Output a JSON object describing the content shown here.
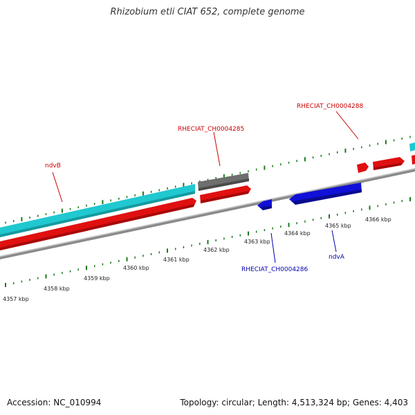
{
  "title": "Rhizobium etli CIAT 652, complete genome",
  "footer": {
    "accession": "Accession: NC_010994",
    "summary": "Topology: circular; Length: 4,513,324 bp; Genes: 4,403"
  },
  "colors": {
    "gene_forward": "#e01010",
    "gene_reverse": "#1010d8",
    "cds_cyan": "#20c8d0",
    "pseudo_gray": "#6e6e6e",
    "backbone": "#8a8a8a",
    "tick": "#1a7a1a",
    "label_forward": "#cc0000",
    "label_reverse": "#0000aa"
  },
  "kbp_labels": [
    "4357 kbp",
    "4358 kbp",
    "4359 kbp",
    "4360 kbp",
    "4361 kbp",
    "4362 kbp",
    "4363 kbp",
    "4364 kbp",
    "4365 kbp",
    "4366 kbp"
  ],
  "genes": {
    "ndvB": "ndvB",
    "rheciat4285": "RHECIAT_CH0004285",
    "rheciat4288": "RHECIAT_CH0004288",
    "rheciat4286": "RHECIAT_CH0004286",
    "ndvA": "ndvA"
  }
}
